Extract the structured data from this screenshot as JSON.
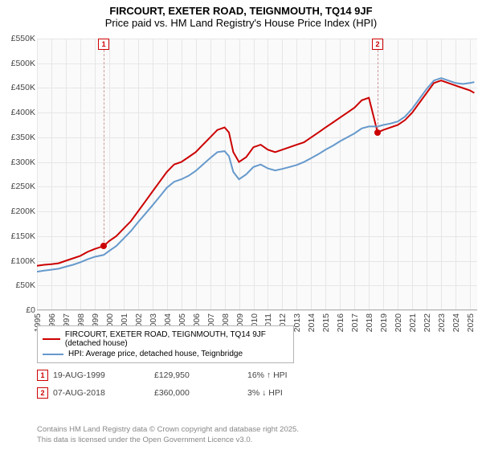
{
  "title": "FIRCOURT, EXETER ROAD, TEIGNMOUTH, TQ14 9JF",
  "subtitle": "Price paid vs. HM Land Registry's House Price Index (HPI)",
  "chart": {
    "type": "line",
    "background_color": "#fafafa",
    "grid_color": "#e6e6e6",
    "axis_color": "#b4b4b4",
    "label_fontsize": 10.5,
    "label_color": "#444444",
    "ylim": [
      0,
      550000
    ],
    "ytick_step": 50000,
    "yticks": [
      "£0",
      "£50K",
      "£100K",
      "£150K",
      "£200K",
      "£250K",
      "£300K",
      "£350K",
      "£400K",
      "£450K",
      "£500K",
      "£550K"
    ],
    "xmin": 1995,
    "xmax": 2025.5,
    "xticks": [
      1995,
      1996,
      1997,
      1998,
      1999,
      2000,
      2001,
      2002,
      2003,
      2004,
      2005,
      2006,
      2007,
      2008,
      2009,
      2010,
      2011,
      2012,
      2013,
      2014,
      2015,
      2016,
      2017,
      2018,
      2019,
      2020,
      2021,
      2022,
      2023,
      2024,
      2025
    ],
    "series": [
      {
        "id": "property",
        "label": "FIRCOURT, EXETER ROAD, TEIGNMOUTH, TQ14 9JF (detached house)",
        "color": "#cc0000",
        "line_width": 2,
        "points": [
          [
            1995.0,
            90000
          ],
          [
            1995.5,
            92000
          ],
          [
            1996.0,
            93000
          ],
          [
            1996.5,
            95000
          ],
          [
            1997.0,
            100000
          ],
          [
            1997.5,
            105000
          ],
          [
            1998.0,
            110000
          ],
          [
            1998.5,
            118000
          ],
          [
            1999.0,
            124000
          ],
          [
            1999.63,
            129950
          ],
          [
            2000.0,
            140000
          ],
          [
            2000.5,
            150000
          ],
          [
            2001.0,
            165000
          ],
          [
            2001.5,
            180000
          ],
          [
            2002.0,
            200000
          ],
          [
            2002.5,
            220000
          ],
          [
            2003.0,
            240000
          ],
          [
            2003.5,
            260000
          ],
          [
            2004.0,
            280000
          ],
          [
            2004.5,
            295000
          ],
          [
            2005.0,
            300000
          ],
          [
            2005.5,
            310000
          ],
          [
            2006.0,
            320000
          ],
          [
            2006.5,
            335000
          ],
          [
            2007.0,
            350000
          ],
          [
            2007.5,
            365000
          ],
          [
            2008.0,
            370000
          ],
          [
            2008.3,
            360000
          ],
          [
            2008.6,
            320000
          ],
          [
            2009.0,
            300000
          ],
          [
            2009.5,
            310000
          ],
          [
            2010.0,
            330000
          ],
          [
            2010.5,
            335000
          ],
          [
            2011.0,
            325000
          ],
          [
            2011.5,
            320000
          ],
          [
            2012.0,
            325000
          ],
          [
            2012.5,
            330000
          ],
          [
            2013.0,
            335000
          ],
          [
            2013.5,
            340000
          ],
          [
            2014.0,
            350000
          ],
          [
            2014.5,
            360000
          ],
          [
            2015.0,
            370000
          ],
          [
            2015.5,
            380000
          ],
          [
            2016.0,
            390000
          ],
          [
            2016.5,
            400000
          ],
          [
            2017.0,
            410000
          ],
          [
            2017.5,
            425000
          ],
          [
            2018.0,
            430000
          ],
          [
            2018.6,
            360000
          ],
          [
            2019.0,
            365000
          ],
          [
            2019.5,
            370000
          ],
          [
            2020.0,
            375000
          ],
          [
            2020.5,
            385000
          ],
          [
            2021.0,
            400000
          ],
          [
            2021.5,
            420000
          ],
          [
            2022.0,
            440000
          ],
          [
            2022.5,
            460000
          ],
          [
            2023.0,
            465000
          ],
          [
            2023.5,
            460000
          ],
          [
            2024.0,
            455000
          ],
          [
            2024.5,
            450000
          ],
          [
            2025.0,
            445000
          ],
          [
            2025.3,
            440000
          ]
        ]
      },
      {
        "id": "hpi",
        "label": "HPI: Average price, detached house, Teignbridge",
        "color": "#6699cc",
        "line_width": 2,
        "points": [
          [
            1995.0,
            78000
          ],
          [
            1995.5,
            80000
          ],
          [
            1996.0,
            82000
          ],
          [
            1996.5,
            84000
          ],
          [
            1997.0,
            88000
          ],
          [
            1997.5,
            92000
          ],
          [
            1998.0,
            97000
          ],
          [
            1998.5,
            103000
          ],
          [
            1999.0,
            108000
          ],
          [
            1999.63,
            112000
          ],
          [
            2000.0,
            120000
          ],
          [
            2000.5,
            130000
          ],
          [
            2001.0,
            145000
          ],
          [
            2001.5,
            160000
          ],
          [
            2002.0,
            178000
          ],
          [
            2002.5,
            195000
          ],
          [
            2003.0,
            212000
          ],
          [
            2003.5,
            230000
          ],
          [
            2004.0,
            248000
          ],
          [
            2004.5,
            260000
          ],
          [
            2005.0,
            265000
          ],
          [
            2005.5,
            272000
          ],
          [
            2006.0,
            282000
          ],
          [
            2006.5,
            295000
          ],
          [
            2007.0,
            308000
          ],
          [
            2007.5,
            320000
          ],
          [
            2008.0,
            322000
          ],
          [
            2008.3,
            312000
          ],
          [
            2008.6,
            280000
          ],
          [
            2009.0,
            265000
          ],
          [
            2009.5,
            275000
          ],
          [
            2010.0,
            290000
          ],
          [
            2010.5,
            295000
          ],
          [
            2011.0,
            287000
          ],
          [
            2011.5,
            283000
          ],
          [
            2012.0,
            286000
          ],
          [
            2012.5,
            290000
          ],
          [
            2013.0,
            294000
          ],
          [
            2013.5,
            300000
          ],
          [
            2014.0,
            308000
          ],
          [
            2014.5,
            316000
          ],
          [
            2015.0,
            325000
          ],
          [
            2015.5,
            333000
          ],
          [
            2016.0,
            342000
          ],
          [
            2016.5,
            350000
          ],
          [
            2017.0,
            358000
          ],
          [
            2017.5,
            368000
          ],
          [
            2018.0,
            372000
          ],
          [
            2018.6,
            372000
          ],
          [
            2019.0,
            375000
          ],
          [
            2019.5,
            378000
          ],
          [
            2020.0,
            382000
          ],
          [
            2020.5,
            392000
          ],
          [
            2021.0,
            408000
          ],
          [
            2021.5,
            428000
          ],
          [
            2022.0,
            448000
          ],
          [
            2022.5,
            465000
          ],
          [
            2023.0,
            470000
          ],
          [
            2023.5,
            465000
          ],
          [
            2024.0,
            460000
          ],
          [
            2024.5,
            458000
          ],
          [
            2025.0,
            460000
          ],
          [
            2025.3,
            462000
          ]
        ]
      }
    ],
    "sale_markers": [
      {
        "n": 1,
        "x": 1999.63,
        "y": 129950
      },
      {
        "n": 2,
        "x": 2018.6,
        "y": 360000
      }
    ]
  },
  "legend": {
    "series1_label": "FIRCOURT, EXETER ROAD, TEIGNMOUTH, TQ14 9JF (detached house)",
    "series1_color": "#cc0000",
    "series2_label": "HPI: Average price, detached house, Teignbridge",
    "series2_color": "#6699cc"
  },
  "sales": [
    {
      "n": "1",
      "date": "19-AUG-1999",
      "price": "£129,950",
      "delta": "16% ↑ HPI"
    },
    {
      "n": "2",
      "date": "07-AUG-2018",
      "price": "£360,000",
      "delta": "3% ↓ HPI"
    }
  ],
  "footer_line1": "Contains HM Land Registry data © Crown copyright and database right 2025.",
  "footer_line2": "This data is licensed under the Open Government Licence v3.0."
}
